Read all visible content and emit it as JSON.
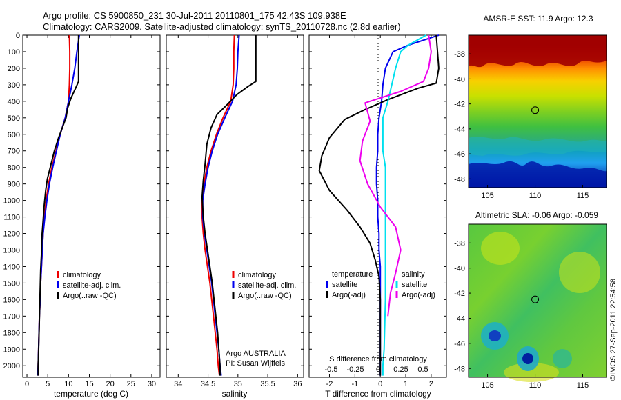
{
  "header": {
    "line1": "Argo profile: CS 5900850_231 30-Jul-2011 20110801_175 42.43S 109.938E",
    "line2": "Climatology: CARS2009. Satellite-adjusted climatology: synTS_20110728.nc (2.8d earlier)"
  },
  "footer_stamp": "©IMOS 27-Sep-2011 22:54:58",
  "colors": {
    "climatology": "#ee0000",
    "satellite": "#0000ee",
    "argo": "#000000",
    "sat_salinity": "#00e0ee",
    "argo_salinity": "#ee00ee"
  },
  "chart_data": [
    {
      "type": "line",
      "id": "temperature",
      "xlabel": "temperature (deg C)",
      "xlim": [
        -1,
        32
      ],
      "ylim": [
        2070,
        0
      ],
      "xticks": [
        0,
        5,
        10,
        15,
        20,
        25,
        30
      ],
      "yticks": [
        0,
        100,
        200,
        300,
        400,
        500,
        600,
        700,
        800,
        900,
        1000,
        1100,
        1200,
        1300,
        1400,
        1500,
        1600,
        1700,
        1800,
        1900,
        2000
      ],
      "legend": [
        "climatology",
        "satellite-adj. clim.",
        "Argo(..raw -QC)"
      ],
      "series": [
        {
          "name": "climatology",
          "color": "#ee0000",
          "points": [
            [
              10.2,
              0
            ],
            [
              10.3,
              100
            ],
            [
              10.3,
              200
            ],
            [
              10.2,
              300
            ],
            [
              10.0,
              400
            ],
            [
              9.2,
              500
            ],
            [
              8.0,
              600
            ],
            [
              7.0,
              700
            ],
            [
              6.0,
              800
            ],
            [
              5.2,
              900
            ],
            [
              4.6,
              1000
            ],
            [
              4.2,
              1100
            ],
            [
              3.9,
              1200
            ],
            [
              3.7,
              1300
            ],
            [
              3.5,
              1400
            ],
            [
              3.3,
              1500
            ],
            [
              3.2,
              1600
            ],
            [
              3.0,
              1700
            ],
            [
              2.9,
              1800
            ],
            [
              2.8,
              1900
            ],
            [
              2.7,
              2000
            ],
            [
              2.6,
              2060
            ]
          ]
        },
        {
          "name": "satellite-adj. clim.",
          "color": "#0000ee",
          "points": [
            [
              12.6,
              0
            ],
            [
              12.0,
              100
            ],
            [
              11.5,
              200
            ],
            [
              10.8,
              300
            ],
            [
              10.0,
              400
            ],
            [
              9.2,
              500
            ],
            [
              8.0,
              600
            ],
            [
              7.1,
              700
            ],
            [
              6.2,
              800
            ],
            [
              5.4,
              900
            ],
            [
              4.8,
              1000
            ],
            [
              4.3,
              1100
            ],
            [
              3.9,
              1200
            ],
            [
              3.7,
              1300
            ],
            [
              3.5,
              1400
            ],
            [
              3.3,
              1500
            ],
            [
              3.2,
              1600
            ],
            [
              3.0,
              1700
            ],
            [
              2.9,
              1800
            ],
            [
              2.8,
              1900
            ],
            [
              2.7,
              2000
            ],
            [
              2.6,
              2060
            ]
          ]
        },
        {
          "name": "Argo(..raw -QC)",
          "color": "#000000",
          "points": [
            [
              12.4,
              0
            ],
            [
              12.4,
              280
            ],
            [
              11.7,
              320
            ],
            [
              10.6,
              380
            ],
            [
              9.8,
              440
            ],
            [
              9.4,
              500
            ],
            [
              8.5,
              560
            ],
            [
              7.6,
              620
            ],
            [
              6.6,
              700
            ],
            [
              5.8,
              780
            ],
            [
              4.9,
              870
            ],
            [
              4.5,
              940
            ],
            [
              4.1,
              1040
            ],
            [
              3.9,
              1120
            ],
            [
              3.6,
              1220
            ],
            [
              3.5,
              1320
            ],
            [
              3.3,
              1420
            ],
            [
              3.2,
              1520
            ],
            [
              3.1,
              1620
            ],
            [
              3.0,
              1720
            ],
            [
              2.9,
              1820
            ],
            [
              2.8,
              1920
            ],
            [
              2.7,
              2000
            ],
            [
              2.7,
              2060
            ]
          ]
        }
      ]
    },
    {
      "type": "line",
      "id": "salinity",
      "xlabel": "salinity",
      "xlim": [
        33.8,
        36.1
      ],
      "ylim": [
        2070,
        0
      ],
      "xticks": [
        34,
        34.5,
        35,
        35.5,
        36
      ],
      "legend": [
        "climatology",
        "satellite-adj. clim.",
        "Argo(..raw -QC)"
      ],
      "annotation": [
        "Argo AUSTRALIA",
        "PI: Susan Wijffels"
      ],
      "series": [
        {
          "name": "climatology",
          "color": "#ee0000",
          "points": [
            [
              34.94,
              0
            ],
            [
              34.93,
              100
            ],
            [
              34.93,
              200
            ],
            [
              34.92,
              300
            ],
            [
              34.88,
              400
            ],
            [
              34.75,
              500
            ],
            [
              34.64,
              600
            ],
            [
              34.55,
              700
            ],
            [
              34.48,
              800
            ],
            [
              34.43,
              900
            ],
            [
              34.4,
              1000
            ],
            [
              34.4,
              1100
            ],
            [
              34.42,
              1200
            ],
            [
              34.45,
              1300
            ],
            [
              34.49,
              1400
            ],
            [
              34.53,
              1500
            ],
            [
              34.56,
              1600
            ],
            [
              34.59,
              1700
            ],
            [
              34.62,
              1800
            ],
            [
              34.65,
              1900
            ],
            [
              34.67,
              2000
            ],
            [
              34.69,
              2060
            ]
          ]
        },
        {
          "name": "satellite-adj. clim.",
          "color": "#0000ee",
          "points": [
            [
              35.02,
              0
            ],
            [
              35.0,
              100
            ],
            [
              34.99,
              200
            ],
            [
              34.97,
              300
            ],
            [
              34.91,
              400
            ],
            [
              34.78,
              500
            ],
            [
              34.66,
              600
            ],
            [
              34.57,
              700
            ],
            [
              34.5,
              800
            ],
            [
              34.45,
              900
            ],
            [
              34.41,
              1000
            ],
            [
              34.41,
              1100
            ],
            [
              34.44,
              1200
            ],
            [
              34.48,
              1300
            ],
            [
              34.52,
              1400
            ],
            [
              34.56,
              1500
            ],
            [
              34.59,
              1600
            ],
            [
              34.62,
              1700
            ],
            [
              34.65,
              1800
            ],
            [
              34.68,
              1900
            ],
            [
              34.7,
              2000
            ],
            [
              34.72,
              2060
            ]
          ]
        },
        {
          "name": "Argo(..raw -QC)",
          "color": "#000000",
          "points": [
            [
              35.3,
              0
            ],
            [
              35.3,
              280
            ],
            [
              35.17,
              310
            ],
            [
              34.98,
              360
            ],
            [
              34.82,
              420
            ],
            [
              34.65,
              480
            ],
            [
              34.55,
              560
            ],
            [
              34.48,
              660
            ],
            [
              34.45,
              780
            ],
            [
              34.42,
              880
            ],
            [
              34.4,
              980
            ],
            [
              34.42,
              1100
            ],
            [
              34.45,
              1200
            ],
            [
              34.49,
              1300
            ],
            [
              34.53,
              1400
            ],
            [
              34.57,
              1500
            ],
            [
              34.6,
              1600
            ],
            [
              34.63,
              1700
            ],
            [
              34.66,
              1800
            ],
            [
              34.68,
              1900
            ],
            [
              34.7,
              2000
            ],
            [
              34.7,
              2060
            ]
          ]
        }
      ]
    },
    {
      "type": "line",
      "id": "difference",
      "xlabel": "T difference from climatology",
      "xlabel_top": "S difference from climatology",
      "xlim": [
        -2.8,
        2.6
      ],
      "ylim": [
        2070,
        0
      ],
      "xticks": [
        -2,
        -1,
        0,
        1,
        2
      ],
      "xticks_s": [
        "-0.5",
        "-0.25",
        "0",
        "0.25",
        "0.5"
      ],
      "legend_headers": [
        "temperature",
        "salinity"
      ],
      "legend_t": [
        "satellite",
        "Argo(-adj)"
      ],
      "legend_s": [
        "satellite",
        "Argo(-adj)"
      ],
      "series": [
        {
          "name": "T satellite",
          "color": "#0000ee",
          "points": [
            [
              2.3,
              0
            ],
            [
              1.1,
              60
            ],
            [
              0.5,
              100
            ],
            [
              0.2,
              200
            ],
            [
              0.1,
              300
            ],
            [
              0.05,
              400
            ],
            [
              -0.05,
              500
            ],
            [
              -0.1,
              600
            ],
            [
              -0.1,
              700
            ],
            [
              -0.15,
              800
            ],
            [
              -0.15,
              900
            ],
            [
              -0.1,
              1000
            ],
            [
              -0.1,
              1100
            ],
            [
              -0.05,
              1200
            ],
            [
              -0.05,
              1300
            ],
            [
              0.0,
              1400
            ],
            [
              0.0,
              1500
            ],
            [
              0.0,
              1600
            ],
            [
              0.0,
              1800
            ],
            [
              0.0,
              2000
            ],
            [
              0.0,
              2060
            ]
          ]
        },
        {
          "name": "T Argo(-adj)",
          "color": "#000000",
          "points": [
            [
              2.2,
              0
            ],
            [
              2.3,
              200
            ],
            [
              2.2,
              290
            ],
            [
              1.5,
              320
            ],
            [
              0.3,
              390
            ],
            [
              -0.6,
              450
            ],
            [
              -1.4,
              510
            ],
            [
              -2.0,
              620
            ],
            [
              -2.3,
              730
            ],
            [
              -2.4,
              820
            ],
            [
              -2.0,
              940
            ],
            [
              -1.3,
              1060
            ],
            [
              -0.8,
              1160
            ],
            [
              -0.4,
              1260
            ],
            [
              -0.2,
              1360
            ],
            [
              -0.05,
              1460
            ],
            [
              0.0,
              1600
            ],
            [
              0.0,
              2000
            ],
            [
              0.0,
              2060
            ]
          ]
        },
        {
          "name": "S satellite",
          "color": "#00e0ee",
          "points": [
            [
              1.8,
              0
            ],
            [
              1.1,
              60
            ],
            [
              0.8,
              100
            ],
            [
              0.6,
              200
            ],
            [
              0.45,
              300
            ],
            [
              0.3,
              400
            ],
            [
              0.1,
              500
            ],
            [
              0.1,
              700
            ],
            [
              0.2,
              800
            ],
            [
              0.2,
              1000
            ],
            [
              0.2,
              1200
            ],
            [
              0.2,
              1600
            ],
            [
              0.15,
              1900
            ],
            [
              0.1,
              2000
            ],
            [
              0.1,
              2060
            ]
          ]
        },
        {
          "name": "S Argo(-adj)",
          "color": "#ee00ee",
          "points": [
            [
              1.9,
              0
            ],
            [
              2.0,
              100
            ],
            [
              1.9,
              200
            ],
            [
              1.7,
              280
            ],
            [
              0.8,
              340
            ],
            [
              -0.6,
              410
            ],
            [
              -0.4,
              520
            ],
            [
              -0.7,
              640
            ],
            [
              -0.8,
              760
            ],
            [
              -0.5,
              900
            ],
            [
              0.0,
              1040
            ],
            [
              0.6,
              1160
            ],
            [
              0.8,
              1300
            ],
            [
              0.6,
              1440
            ],
            [
              0.4,
              1560
            ],
            [
              0.3,
              1700
            ]
          ]
        }
      ]
    }
  ],
  "maps": [
    {
      "id": "sst",
      "title": "AMSR-E SST: 11.9  Argo: 12.3",
      "xticks": [
        105,
        110,
        115
      ],
      "yticks": [
        -38,
        -40,
        -42,
        -44,
        -46,
        -48
      ],
      "xlim": [
        103,
        117.5
      ],
      "ylim": [
        -48.7,
        -36.5
      ],
      "marker": [
        110,
        -42.5
      ]
    },
    {
      "id": "sla",
      "title": "Altimetric SLA: -0.06  Argo: -0.059",
      "xticks": [
        105,
        110,
        115
      ],
      "yticks": [
        -38,
        -40,
        -42,
        -44,
        -46,
        -48
      ],
      "xlim": [
        103,
        117.5
      ],
      "ylim": [
        -48.7,
        -36.5
      ],
      "marker": [
        110,
        -42.5
      ]
    }
  ]
}
